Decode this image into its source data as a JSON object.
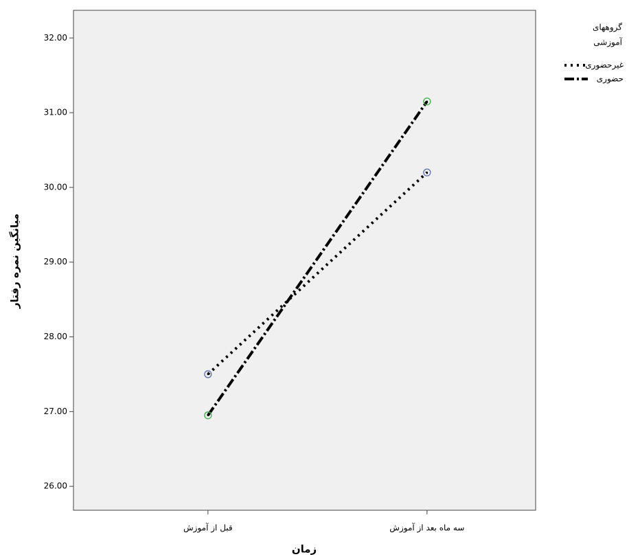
{
  "chart_data": {
    "type": "line",
    "x_label": "زمان",
    "y_label": "میانگین نمره رفتار",
    "legend_title": [
      "گروههای",
      "آموزشی"
    ],
    "categories": [
      "قبل از آموزش",
      "سه ماه بعد از آموزش"
    ],
    "series": [
      {
        "name": "غیرحضوری",
        "color": "#5a6fb5",
        "dash": "3 6",
        "values": [
          27.5,
          30.2
        ]
      },
      {
        "name": "حضوری",
        "color": "#3cb043",
        "dash": "14 4 3 4",
        "values": [
          26.95,
          31.15
        ]
      }
    ],
    "ylim": [
      25.68,
      32.37
    ],
    "yticks": [
      {
        "value": 26,
        "label": "26.00"
      },
      {
        "value": 27,
        "label": "27.00"
      },
      {
        "value": 28,
        "label": "28.00"
      },
      {
        "value": 29,
        "label": "29.00"
      },
      {
        "value": 30,
        "label": "30.00"
      },
      {
        "value": 31,
        "label": "31.00"
      },
      {
        "value": 32,
        "label": "32.00"
      }
    ],
    "legend": "right"
  }
}
